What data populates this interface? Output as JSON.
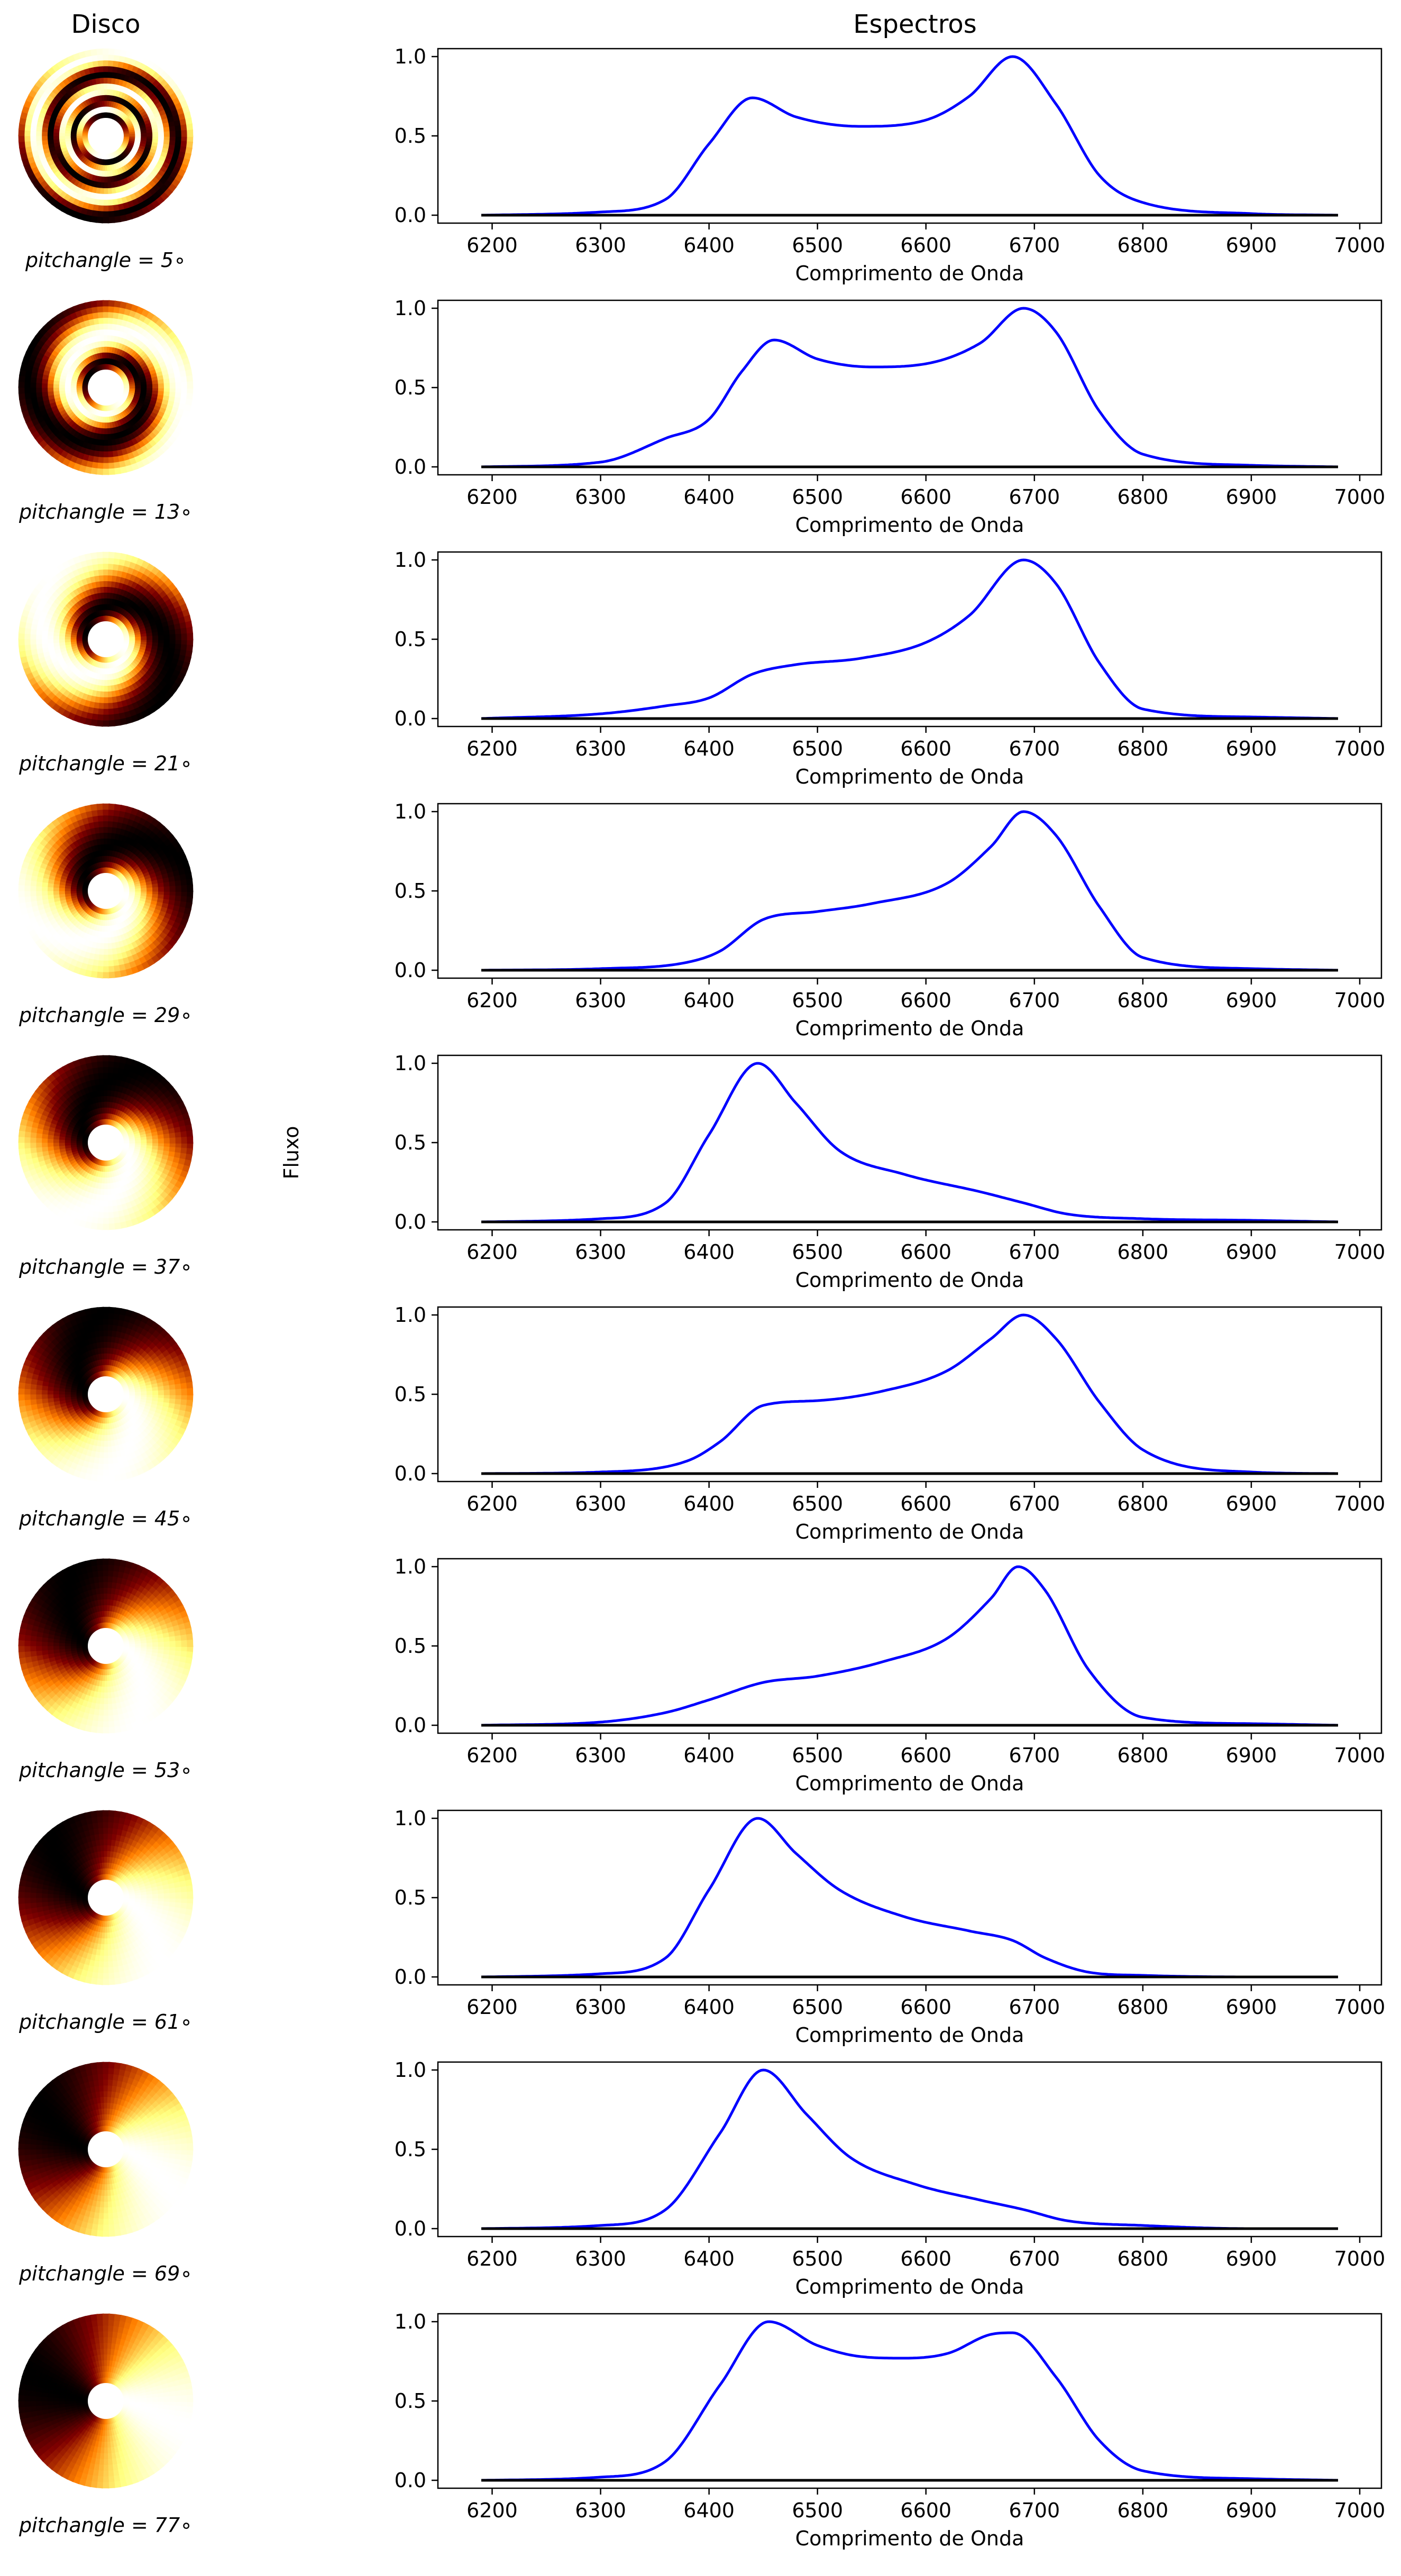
{
  "header": {
    "left_title": "Disco",
    "right_title": "Espectros"
  },
  "ylabel": "Fluxo",
  "colors": {
    "spectrum": "#0000ff",
    "baseline": "#000000",
    "axes": "#000000",
    "hole": "#ffffff"
  },
  "disk_colormap": "afmhot",
  "chart_data": [
    {
      "type": "line",
      "pitch_label": "pitchangle = 5∘",
      "pitch_angle": 5,
      "xlabel": "Comprimento de Onda",
      "xlim": [
        6150,
        7020
      ],
      "ylim": [
        -0.05,
        1.05
      ],
      "xticks": [
        6200,
        6300,
        6400,
        6500,
        6600,
        6700,
        6800,
        6900,
        7000
      ],
      "yticks": [
        0.0,
        0.5,
        1.0
      ],
      "series": [
        {
          "x": [
            6190,
            6300,
            6360,
            6400,
            6440,
            6480,
            6540,
            6600,
            6640,
            6680,
            6720,
            6760,
            6800,
            6900,
            6980
          ],
          "y": [
            0.0,
            0.02,
            0.1,
            0.45,
            0.74,
            0.62,
            0.56,
            0.6,
            0.75,
            1.0,
            0.7,
            0.25,
            0.08,
            0.01,
            0.0
          ]
        },
        {
          "x": [
            6190,
            6980
          ],
          "y": [
            0.0,
            0.0
          ]
        }
      ]
    },
    {
      "type": "line",
      "pitch_label": "pitchangle = 13∘",
      "pitch_angle": 13,
      "xlabel": "Comprimento de Onda",
      "xlim": [
        6150,
        7020
      ],
      "ylim": [
        -0.05,
        1.05
      ],
      "xticks": [
        6200,
        6300,
        6400,
        6500,
        6600,
        6700,
        6800,
        6900,
        7000
      ],
      "yticks": [
        0.0,
        0.5,
        1.0
      ],
      "series": [
        {
          "x": [
            6190,
            6300,
            6360,
            6400,
            6430,
            6460,
            6500,
            6550,
            6600,
            6650,
            6690,
            6720,
            6760,
            6800,
            6900,
            6980
          ],
          "y": [
            0.0,
            0.03,
            0.18,
            0.3,
            0.6,
            0.8,
            0.68,
            0.63,
            0.65,
            0.78,
            1.0,
            0.85,
            0.35,
            0.08,
            0.01,
            0.0
          ]
        },
        {
          "x": [
            6190,
            6980
          ],
          "y": [
            0.0,
            0.0
          ]
        }
      ]
    },
    {
      "type": "line",
      "pitch_label": "pitchangle = 21∘",
      "pitch_angle": 21,
      "xlabel": "Comprimento de Onda",
      "xlim": [
        6150,
        7020
      ],
      "ylim": [
        -0.05,
        1.05
      ],
      "xticks": [
        6200,
        6300,
        6400,
        6500,
        6600,
        6700,
        6800,
        6900,
        7000
      ],
      "yticks": [
        0.0,
        0.5,
        1.0
      ],
      "series": [
        {
          "x": [
            6190,
            6300,
            6360,
            6400,
            6440,
            6480,
            6540,
            6600,
            6640,
            6690,
            6720,
            6760,
            6800,
            6900,
            6980
          ],
          "y": [
            0.0,
            0.03,
            0.08,
            0.13,
            0.28,
            0.34,
            0.38,
            0.48,
            0.65,
            1.0,
            0.85,
            0.35,
            0.06,
            0.01,
            0.0
          ]
        },
        {
          "x": [
            6190,
            6980
          ],
          "y": [
            0.0,
            0.0
          ]
        }
      ]
    },
    {
      "type": "line",
      "pitch_label": "pitchangle = 29∘",
      "pitch_angle": 29,
      "xlabel": "Comprimento de Onda",
      "xlim": [
        6150,
        7020
      ],
      "ylim": [
        -0.05,
        1.05
      ],
      "xticks": [
        6200,
        6300,
        6400,
        6500,
        6600,
        6700,
        6800,
        6900,
        7000
      ],
      "yticks": [
        0.0,
        0.5,
        1.0
      ],
      "series": [
        {
          "x": [
            6190,
            6300,
            6380,
            6410,
            6450,
            6500,
            6550,
            6620,
            6660,
            6690,
            6720,
            6760,
            6800,
            6900,
            6980
          ],
          "y": [
            0.0,
            0.01,
            0.05,
            0.12,
            0.32,
            0.37,
            0.42,
            0.55,
            0.78,
            1.0,
            0.85,
            0.4,
            0.08,
            0.01,
            0.0
          ]
        },
        {
          "x": [
            6190,
            6980
          ],
          "y": [
            0.0,
            0.0
          ]
        }
      ]
    },
    {
      "type": "line",
      "pitch_label": "pitchangle = 37∘",
      "pitch_angle": 37,
      "xlabel": "Comprimento de Onda",
      "xlim": [
        6150,
        7020
      ],
      "ylim": [
        -0.05,
        1.05
      ],
      "xticks": [
        6200,
        6300,
        6400,
        6500,
        6600,
        6700,
        6800,
        6900,
        7000
      ],
      "yticks": [
        0.0,
        0.5,
        1.0
      ],
      "series": [
        {
          "x": [
            6190,
            6300,
            6360,
            6400,
            6445,
            6480,
            6520,
            6580,
            6650,
            6690,
            6730,
            6800,
            6900,
            6980
          ],
          "y": [
            0.0,
            0.02,
            0.12,
            0.55,
            1.0,
            0.75,
            0.45,
            0.3,
            0.19,
            0.12,
            0.05,
            0.02,
            0.01,
            0.0
          ]
        },
        {
          "x": [
            6190,
            6980
          ],
          "y": [
            0.0,
            0.0
          ]
        }
      ]
    },
    {
      "type": "line",
      "pitch_label": "pitchangle = 45∘",
      "pitch_angle": 45,
      "xlabel": "Comprimento de Onda",
      "xlim": [
        6150,
        7020
      ],
      "ylim": [
        -0.05,
        1.05
      ],
      "xticks": [
        6200,
        6300,
        6400,
        6500,
        6600,
        6700,
        6800,
        6900,
        7000
      ],
      "yticks": [
        0.0,
        0.5,
        1.0
      ],
      "series": [
        {
          "x": [
            6190,
            6300,
            6380,
            6410,
            6450,
            6500,
            6560,
            6620,
            6660,
            6690,
            6720,
            6760,
            6800,
            6900,
            6980
          ],
          "y": [
            0.0,
            0.01,
            0.08,
            0.2,
            0.43,
            0.46,
            0.52,
            0.65,
            0.85,
            1.0,
            0.85,
            0.45,
            0.15,
            0.01,
            0.0
          ]
        },
        {
          "x": [
            6190,
            6980
          ],
          "y": [
            0.0,
            0.0
          ]
        }
      ]
    },
    {
      "type": "line",
      "pitch_label": "pitchangle = 53∘",
      "pitch_angle": 53,
      "xlabel": "Comprimento de Onda",
      "xlim": [
        6150,
        7020
      ],
      "ylim": [
        -0.05,
        1.05
      ],
      "xticks": [
        6200,
        6300,
        6400,
        6500,
        6600,
        6700,
        6800,
        6900,
        7000
      ],
      "yticks": [
        0.0,
        0.5,
        1.0
      ],
      "series": [
        {
          "x": [
            6190,
            6300,
            6360,
            6400,
            6450,
            6500,
            6560,
            6620,
            6660,
            6685,
            6710,
            6750,
            6800,
            6900,
            6980
          ],
          "y": [
            0.0,
            0.02,
            0.08,
            0.16,
            0.27,
            0.31,
            0.4,
            0.55,
            0.8,
            1.0,
            0.85,
            0.35,
            0.05,
            0.01,
            0.0
          ]
        },
        {
          "x": [
            6190,
            6980
          ],
          "y": [
            0.0,
            0.0
          ]
        }
      ]
    },
    {
      "type": "line",
      "pitch_label": "pitchangle = 61∘",
      "pitch_angle": 61,
      "xlabel": "Comprimento de Onda",
      "xlim": [
        6150,
        7020
      ],
      "ylim": [
        -0.05,
        1.05
      ],
      "xticks": [
        6200,
        6300,
        6400,
        6500,
        6600,
        6700,
        6800,
        6900,
        7000
      ],
      "yticks": [
        0.0,
        0.5,
        1.0
      ],
      "series": [
        {
          "x": [
            6190,
            6300,
            6360,
            6400,
            6445,
            6480,
            6520,
            6580,
            6640,
            6680,
            6710,
            6750,
            6800,
            6900,
            6980
          ],
          "y": [
            0.0,
            0.02,
            0.12,
            0.55,
            1.0,
            0.78,
            0.55,
            0.38,
            0.29,
            0.23,
            0.12,
            0.03,
            0.01,
            0.0,
            0.0
          ]
        },
        {
          "x": [
            6190,
            6980
          ],
          "y": [
            0.0,
            0.0
          ]
        }
      ]
    },
    {
      "type": "line",
      "pitch_label": "pitchangle = 69∘",
      "pitch_angle": 69,
      "xlabel": "Comprimento de Onda",
      "xlim": [
        6150,
        7020
      ],
      "ylim": [
        -0.05,
        1.05
      ],
      "xticks": [
        6200,
        6300,
        6400,
        6500,
        6600,
        6700,
        6800,
        6900,
        7000
      ],
      "yticks": [
        0.0,
        0.5,
        1.0
      ],
      "series": [
        {
          "x": [
            6190,
            6300,
            6360,
            6410,
            6450,
            6490,
            6530,
            6590,
            6650,
            6690,
            6730,
            6800,
            6900,
            6980
          ],
          "y": [
            0.0,
            0.02,
            0.12,
            0.6,
            1.0,
            0.72,
            0.45,
            0.28,
            0.18,
            0.12,
            0.05,
            0.02,
            0.0,
            0.0
          ]
        },
        {
          "x": [
            6190,
            6980
          ],
          "y": [
            0.0,
            0.0
          ]
        }
      ]
    },
    {
      "type": "line",
      "pitch_label": "pitchangle = 77∘",
      "pitch_angle": 77,
      "xlabel": "Comprimento de Onda",
      "xlim": [
        6150,
        7020
      ],
      "ylim": [
        -0.05,
        1.05
      ],
      "xticks": [
        6200,
        6300,
        6400,
        6500,
        6600,
        6700,
        6800,
        6900,
        7000
      ],
      "yticks": [
        0.0,
        0.5,
        1.0
      ],
      "series": [
        {
          "x": [
            6190,
            6300,
            6360,
            6410,
            6455,
            6500,
            6540,
            6580,
            6620,
            6660,
            6680,
            6720,
            6760,
            6800,
            6900,
            6980
          ],
          "y": [
            0.0,
            0.02,
            0.12,
            0.6,
            1.0,
            0.85,
            0.78,
            0.77,
            0.8,
            0.92,
            0.93,
            0.65,
            0.25,
            0.06,
            0.01,
            0.0
          ]
        },
        {
          "x": [
            6190,
            6980
          ],
          "y": [
            0.0,
            0.0
          ]
        }
      ]
    }
  ]
}
